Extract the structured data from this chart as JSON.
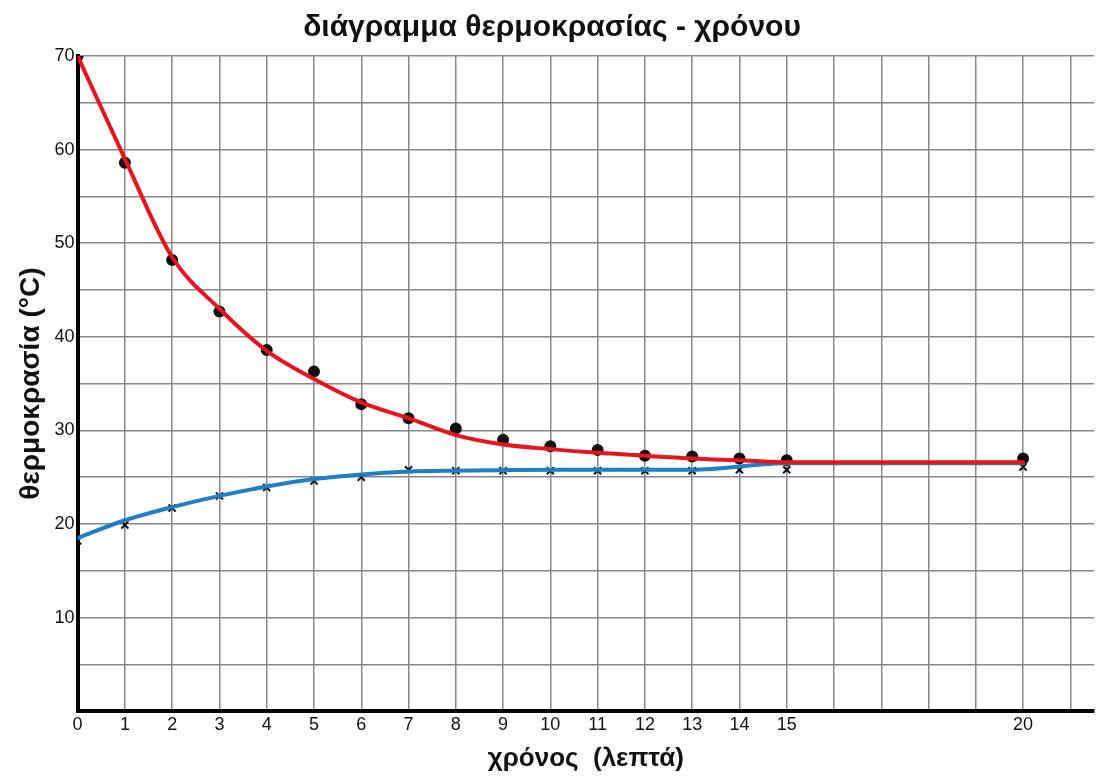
{
  "chart_data": {
    "type": "scatter",
    "title": "διάγραμμα θερμοκρασίας - χρόνου",
    "xlabel": "χρόνος  (λεπτά)",
    "ylabel": "θερμοκρασία (°C)",
    "xlim": [
      0,
      21.5
    ],
    "ylim": [
      0,
      70
    ],
    "xticks": [
      0,
      1,
      2,
      3,
      4,
      5,
      6,
      7,
      8,
      9,
      10,
      11,
      12,
      13,
      14,
      15,
      {
        "value": 16,
        "label": null
      },
      {
        "value": 17,
        "label": null
      },
      {
        "value": 18,
        "label": null
      },
      {
        "value": 19,
        "label": null
      },
      20,
      {
        "value": 21,
        "label": null
      }
    ],
    "yticks": [
      {
        "value": 5,
        "label": null
      },
      10,
      {
        "value": 15,
        "label": null
      },
      20,
      {
        "value": 25,
        "label": null
      },
      30,
      {
        "value": 35,
        "label": null
      },
      40,
      {
        "value": 45,
        "label": null
      },
      50,
      {
        "value": 55,
        "label": null
      },
      60,
      {
        "value": 65,
        "label": null
      },
      70
    ],
    "grid": true,
    "legend": false,
    "series": [
      {
        "type": "line",
        "color": "#e8141b",
        "marker": "none",
        "x": [
          0,
          1,
          2,
          3,
          4,
          5,
          6,
          7,
          8,
          9,
          10,
          11,
          12,
          13,
          14,
          15,
          20
        ],
        "values": [
          70,
          59,
          48.5,
          43,
          38.5,
          35.5,
          33,
          31.3,
          29.5,
          28.5,
          28,
          27.6,
          27.3,
          27,
          26.8,
          26.6,
          26.6
        ]
      },
      {
        "type": "line",
        "color": "#1f7fc6",
        "marker": "none",
        "x": [
          0,
          1,
          2,
          3,
          4,
          5,
          6,
          7,
          8,
          10,
          13,
          15,
          20
        ],
        "values": [
          18.5,
          20.4,
          21.8,
          23,
          24,
          24.8,
          25.3,
          25.6,
          25.7,
          25.8,
          25.8,
          26.5,
          26.5
        ]
      },
      {
        "type": "scatter",
        "color": "#111111",
        "marker": "circle",
        "x": [
          0,
          1,
          2,
          3,
          4,
          5,
          6,
          7,
          8,
          9,
          10,
          11,
          12,
          13,
          14,
          15,
          20
        ],
        "values": [
          70,
          58.6,
          48.2,
          42.7,
          38.6,
          36.3,
          32.8,
          31.3,
          30.2,
          29,
          28.3,
          27.9,
          27.3,
          27.2,
          27,
          26.8,
          27
        ]
      },
      {
        "type": "scatter",
        "color": "#111111",
        "marker": "cross",
        "x": [
          0,
          1,
          2,
          3,
          4,
          5,
          6,
          7,
          8,
          9,
          10,
          11,
          12,
          13,
          14,
          15,
          20
        ],
        "values": [
          18.2,
          19.9,
          21.7,
          23,
          23.9,
          24.6,
          25,
          25.8,
          25.7,
          25.7,
          25.7,
          25.7,
          25.7,
          25.7,
          25.8,
          25.8,
          26.1
        ]
      }
    ]
  }
}
